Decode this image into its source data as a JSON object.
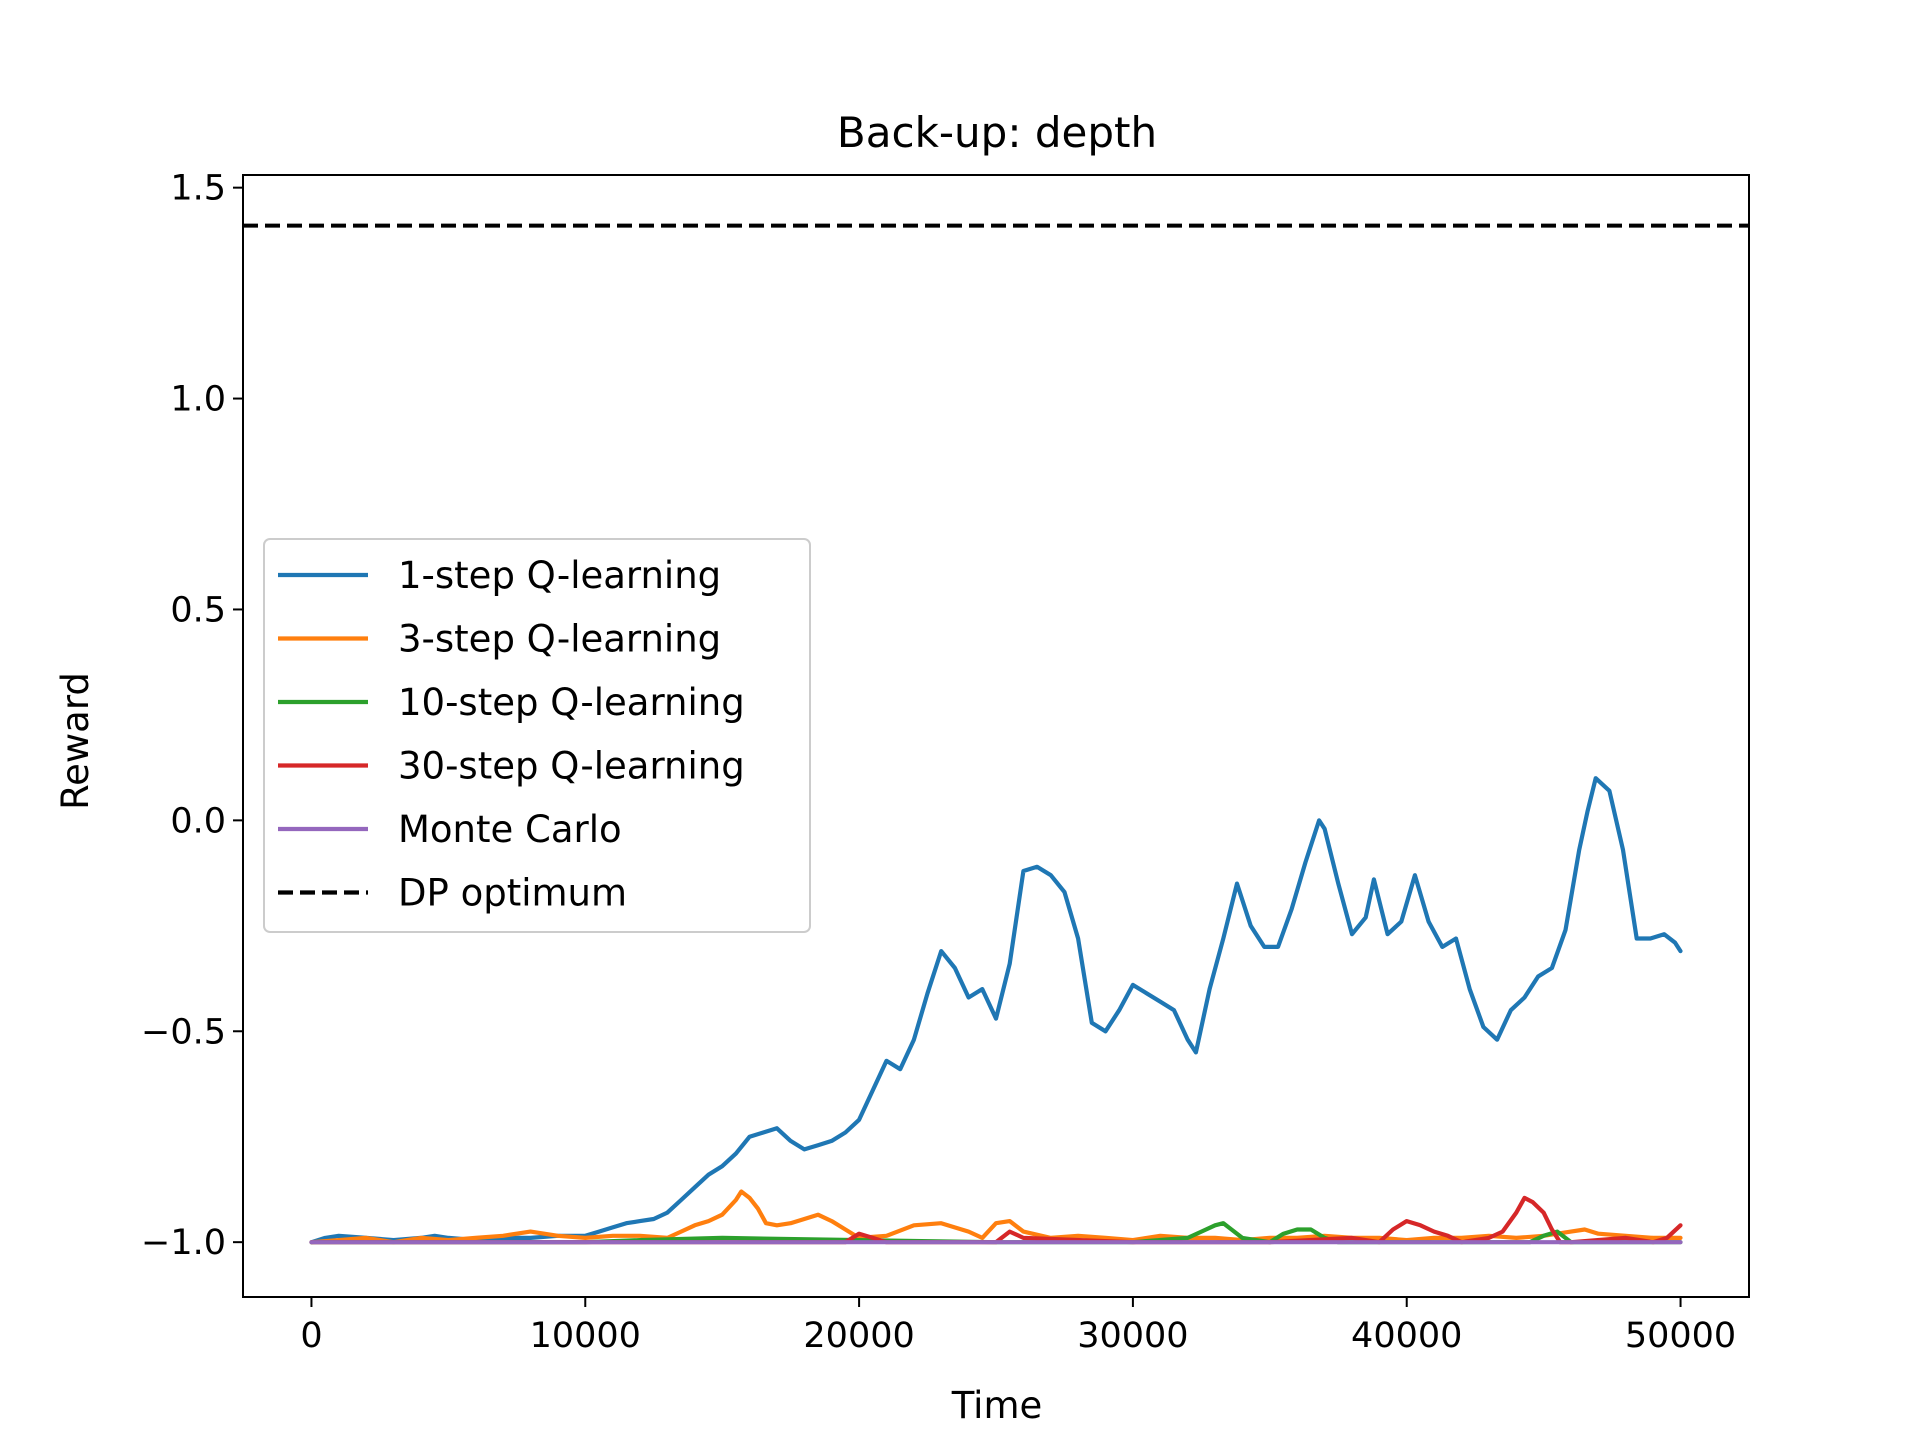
{
  "chart_data": {
    "type": "line",
    "title": "Back-up: depth",
    "xlabel": "Time",
    "ylabel": "Reward",
    "xlim": [
      -2500,
      52500
    ],
    "ylim": [
      -1.13,
      1.53
    ],
    "xticks": [
      0,
      10000,
      20000,
      30000,
      40000,
      50000
    ],
    "xtick_labels": [
      "0",
      "10000",
      "20000",
      "30000",
      "40000",
      "50000"
    ],
    "yticks": [
      -1.0,
      -0.5,
      0.0,
      0.5,
      1.0,
      1.5
    ],
    "ytick_labels": [
      "−1.0",
      "−0.5",
      "0.0",
      "0.5",
      "1.0",
      "1.5"
    ],
    "grid": false,
    "legend_position": "center-left",
    "series": [
      {
        "name": "1-step Q-learning",
        "color": "#1f77b4",
        "style": "solid",
        "x": [
          0,
          500,
          1000,
          2000,
          3000,
          4000,
          4500,
          5000,
          6000,
          7000,
          8000,
          9000,
          10000,
          10500,
          11000,
          11500,
          12000,
          12500,
          13000,
          13500,
          14000,
          14500,
          15000,
          15500,
          16000,
          16500,
          17000,
          17500,
          18000,
          18500,
          19000,
          19500,
          20000,
          20500,
          21000,
          21500,
          22000,
          22500,
          23000,
          23500,
          24000,
          24500,
          25000,
          25500,
          26000,
          26500,
          27000,
          27500,
          28000,
          28500,
          29000,
          29500,
          30000,
          30500,
          31000,
          31500,
          32000,
          32300,
          32800,
          33300,
          33800,
          34300,
          34800,
          35300,
          35800,
          36300,
          36800,
          37000,
          37500,
          38000,
          38500,
          38800,
          39300,
          39800,
          40300,
          40800,
          41300,
          41800,
          42300,
          42800,
          43300,
          43800,
          44300,
          44800,
          45300,
          45800,
          46300,
          46600,
          46900,
          47400,
          47900,
          48400,
          48900,
          49400,
          49800,
          50000
        ],
        "y": [
          -1.0,
          -0.99,
          -0.985,
          -0.99,
          -0.995,
          -0.99,
          -0.985,
          -0.99,
          -0.995,
          -0.99,
          -0.99,
          -0.985,
          -0.985,
          -0.975,
          -0.965,
          -0.955,
          -0.95,
          -0.945,
          -0.93,
          -0.9,
          -0.87,
          -0.84,
          -0.82,
          -0.79,
          -0.75,
          -0.74,
          -0.73,
          -0.76,
          -0.78,
          -0.77,
          -0.76,
          -0.74,
          -0.71,
          -0.64,
          -0.57,
          -0.59,
          -0.52,
          -0.41,
          -0.31,
          -0.35,
          -0.42,
          -0.4,
          -0.47,
          -0.34,
          -0.12,
          -0.11,
          -0.13,
          -0.17,
          -0.28,
          -0.48,
          -0.5,
          -0.45,
          -0.39,
          -0.41,
          -0.43,
          -0.45,
          -0.52,
          -0.55,
          -0.4,
          -0.28,
          -0.15,
          -0.25,
          -0.3,
          -0.3,
          -0.21,
          -0.1,
          0.0,
          -0.02,
          -0.15,
          -0.27,
          -0.23,
          -0.14,
          -0.27,
          -0.24,
          -0.13,
          -0.24,
          -0.3,
          -0.28,
          -0.4,
          -0.49,
          -0.52,
          -0.45,
          -0.42,
          -0.37,
          -0.35,
          -0.26,
          -0.07,
          0.02,
          0.1,
          0.07,
          -0.07,
          -0.28,
          -0.28,
          -0.27,
          -0.29,
          -0.31
        ]
      },
      {
        "name": "3-step Q-learning",
        "color": "#ff7f0e",
        "style": "solid",
        "x": [
          0,
          1000,
          2000,
          3000,
          4000,
          5000,
          6000,
          7000,
          8000,
          9000,
          10000,
          11000,
          12000,
          13000,
          13500,
          14000,
          14500,
          15000,
          15500,
          15700,
          16000,
          16300,
          16600,
          17000,
          17500,
          18000,
          18500,
          19000,
          19500,
          20000,
          21000,
          22000,
          23000,
          24000,
          24500,
          25000,
          25500,
          26000,
          27000,
          28000,
          29000,
          30000,
          31000,
          32000,
          33000,
          34000,
          35000,
          36000,
          37000,
          38000,
          39000,
          40000,
          41000,
          42000,
          43000,
          44000,
          45000,
          46000,
          46500,
          47000,
          48000,
          49000,
          50000
        ],
        "y": [
          -1.0,
          -0.995,
          -0.99,
          -1.0,
          -0.99,
          -0.995,
          -0.99,
          -0.985,
          -0.975,
          -0.985,
          -0.99,
          -0.985,
          -0.985,
          -0.99,
          -0.975,
          -0.96,
          -0.95,
          -0.935,
          -0.9,
          -0.88,
          -0.895,
          -0.92,
          -0.955,
          -0.96,
          -0.955,
          -0.945,
          -0.935,
          -0.95,
          -0.97,
          -0.99,
          -0.985,
          -0.96,
          -0.955,
          -0.975,
          -0.99,
          -0.955,
          -0.95,
          -0.975,
          -0.99,
          -0.985,
          -0.99,
          -0.995,
          -0.985,
          -0.99,
          -0.99,
          -0.995,
          -0.99,
          -0.99,
          -0.985,
          -0.99,
          -0.99,
          -0.995,
          -0.99,
          -0.99,
          -0.985,
          -0.99,
          -0.985,
          -0.975,
          -0.97,
          -0.98,
          -0.985,
          -0.99,
          -0.99
        ]
      },
      {
        "name": "10-step Q-learning",
        "color": "#2ca02c",
        "style": "solid",
        "x": [
          0,
          5000,
          10000,
          12000,
          15000,
          20000,
          25000,
          30000,
          32000,
          32500,
          33000,
          33300,
          33600,
          34000,
          35000,
          35500,
          36000,
          36500,
          37000,
          37500,
          40000,
          44500,
          45000,
          45500,
          46000,
          50000
        ],
        "y": [
          -1.0,
          -1.0,
          -1.0,
          -0.995,
          -0.99,
          -0.995,
          -1.0,
          -1.0,
          -0.99,
          -0.975,
          -0.96,
          -0.955,
          -0.97,
          -0.99,
          -1.0,
          -0.98,
          -0.97,
          -0.97,
          -0.99,
          -1.0,
          -1.0,
          -1.0,
          -0.985,
          -0.975,
          -1.0,
          -1.0
        ]
      },
      {
        "name": "30-step Q-learning",
        "color": "#d62728",
        "style": "solid",
        "x": [
          0,
          5000,
          10000,
          15000,
          19500,
          20000,
          20500,
          21000,
          25000,
          25500,
          26000,
          30000,
          35000,
          38000,
          39000,
          39500,
          40000,
          40500,
          41000,
          41500,
          42000,
          43000,
          43500,
          44000,
          44300,
          44600,
          45000,
          45300,
          45600,
          46000,
          48000,
          49000,
          49500,
          50000
        ],
        "y": [
          -1.0,
          -1.0,
          -1.0,
          -1.0,
          -1.0,
          -0.98,
          -0.99,
          -1.0,
          -1.0,
          -0.975,
          -0.99,
          -1.0,
          -1.0,
          -0.99,
          -1.0,
          -0.97,
          -0.95,
          -0.96,
          -0.975,
          -0.985,
          -1.0,
          -0.99,
          -0.975,
          -0.93,
          -0.895,
          -0.905,
          -0.93,
          -0.97,
          -1.0,
          -1.0,
          -0.99,
          -1.0,
          -0.99,
          -0.96
        ]
      },
      {
        "name": "Monte Carlo",
        "color": "#9467bd",
        "style": "solid",
        "x": [
          0,
          50000
        ],
        "y": [
          -1.0,
          -1.0
        ]
      },
      {
        "name": "DP optimum",
        "color": "#000000",
        "style": "dashed",
        "x": [
          -2500,
          52500
        ],
        "y": [
          1.41,
          1.41
        ]
      }
    ]
  }
}
